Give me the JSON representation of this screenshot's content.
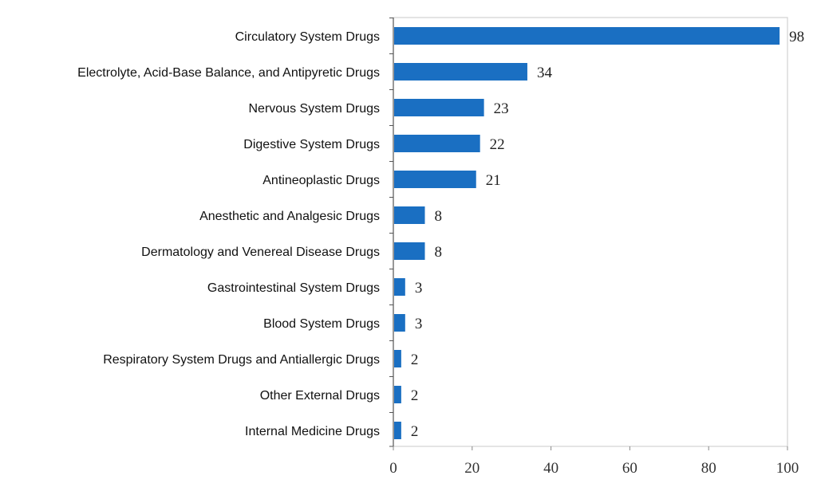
{
  "chart_data": {
    "type": "bar",
    "orientation": "horizontal",
    "title": "",
    "xlabel": "",
    "ylabel": "",
    "xlim": [
      0,
      100
    ],
    "xticks": [
      0,
      20,
      40,
      60,
      80,
      100
    ],
    "grid": false,
    "bar_color": "#1a6fc2",
    "categories": [
      "Circulatory System Drugs",
      "Electrolyte, Acid-Base Balance, and Antipyretic Drugs",
      "Nervous System Drugs",
      "Digestive System Drugs",
      "Antineoplastic Drugs",
      "Anesthetic and Analgesic Drugs",
      "Dermatology and Venereal Disease Drugs",
      "Gastrointestinal System Drugs",
      "Blood System Drugs",
      "Respiratory System Drugs and Antiallergic Drugs",
      "Other External Drugs",
      "Internal Medicine Drugs"
    ],
    "values": [
      98,
      34,
      23,
      22,
      21,
      8,
      8,
      3,
      3,
      2,
      2,
      2
    ]
  }
}
